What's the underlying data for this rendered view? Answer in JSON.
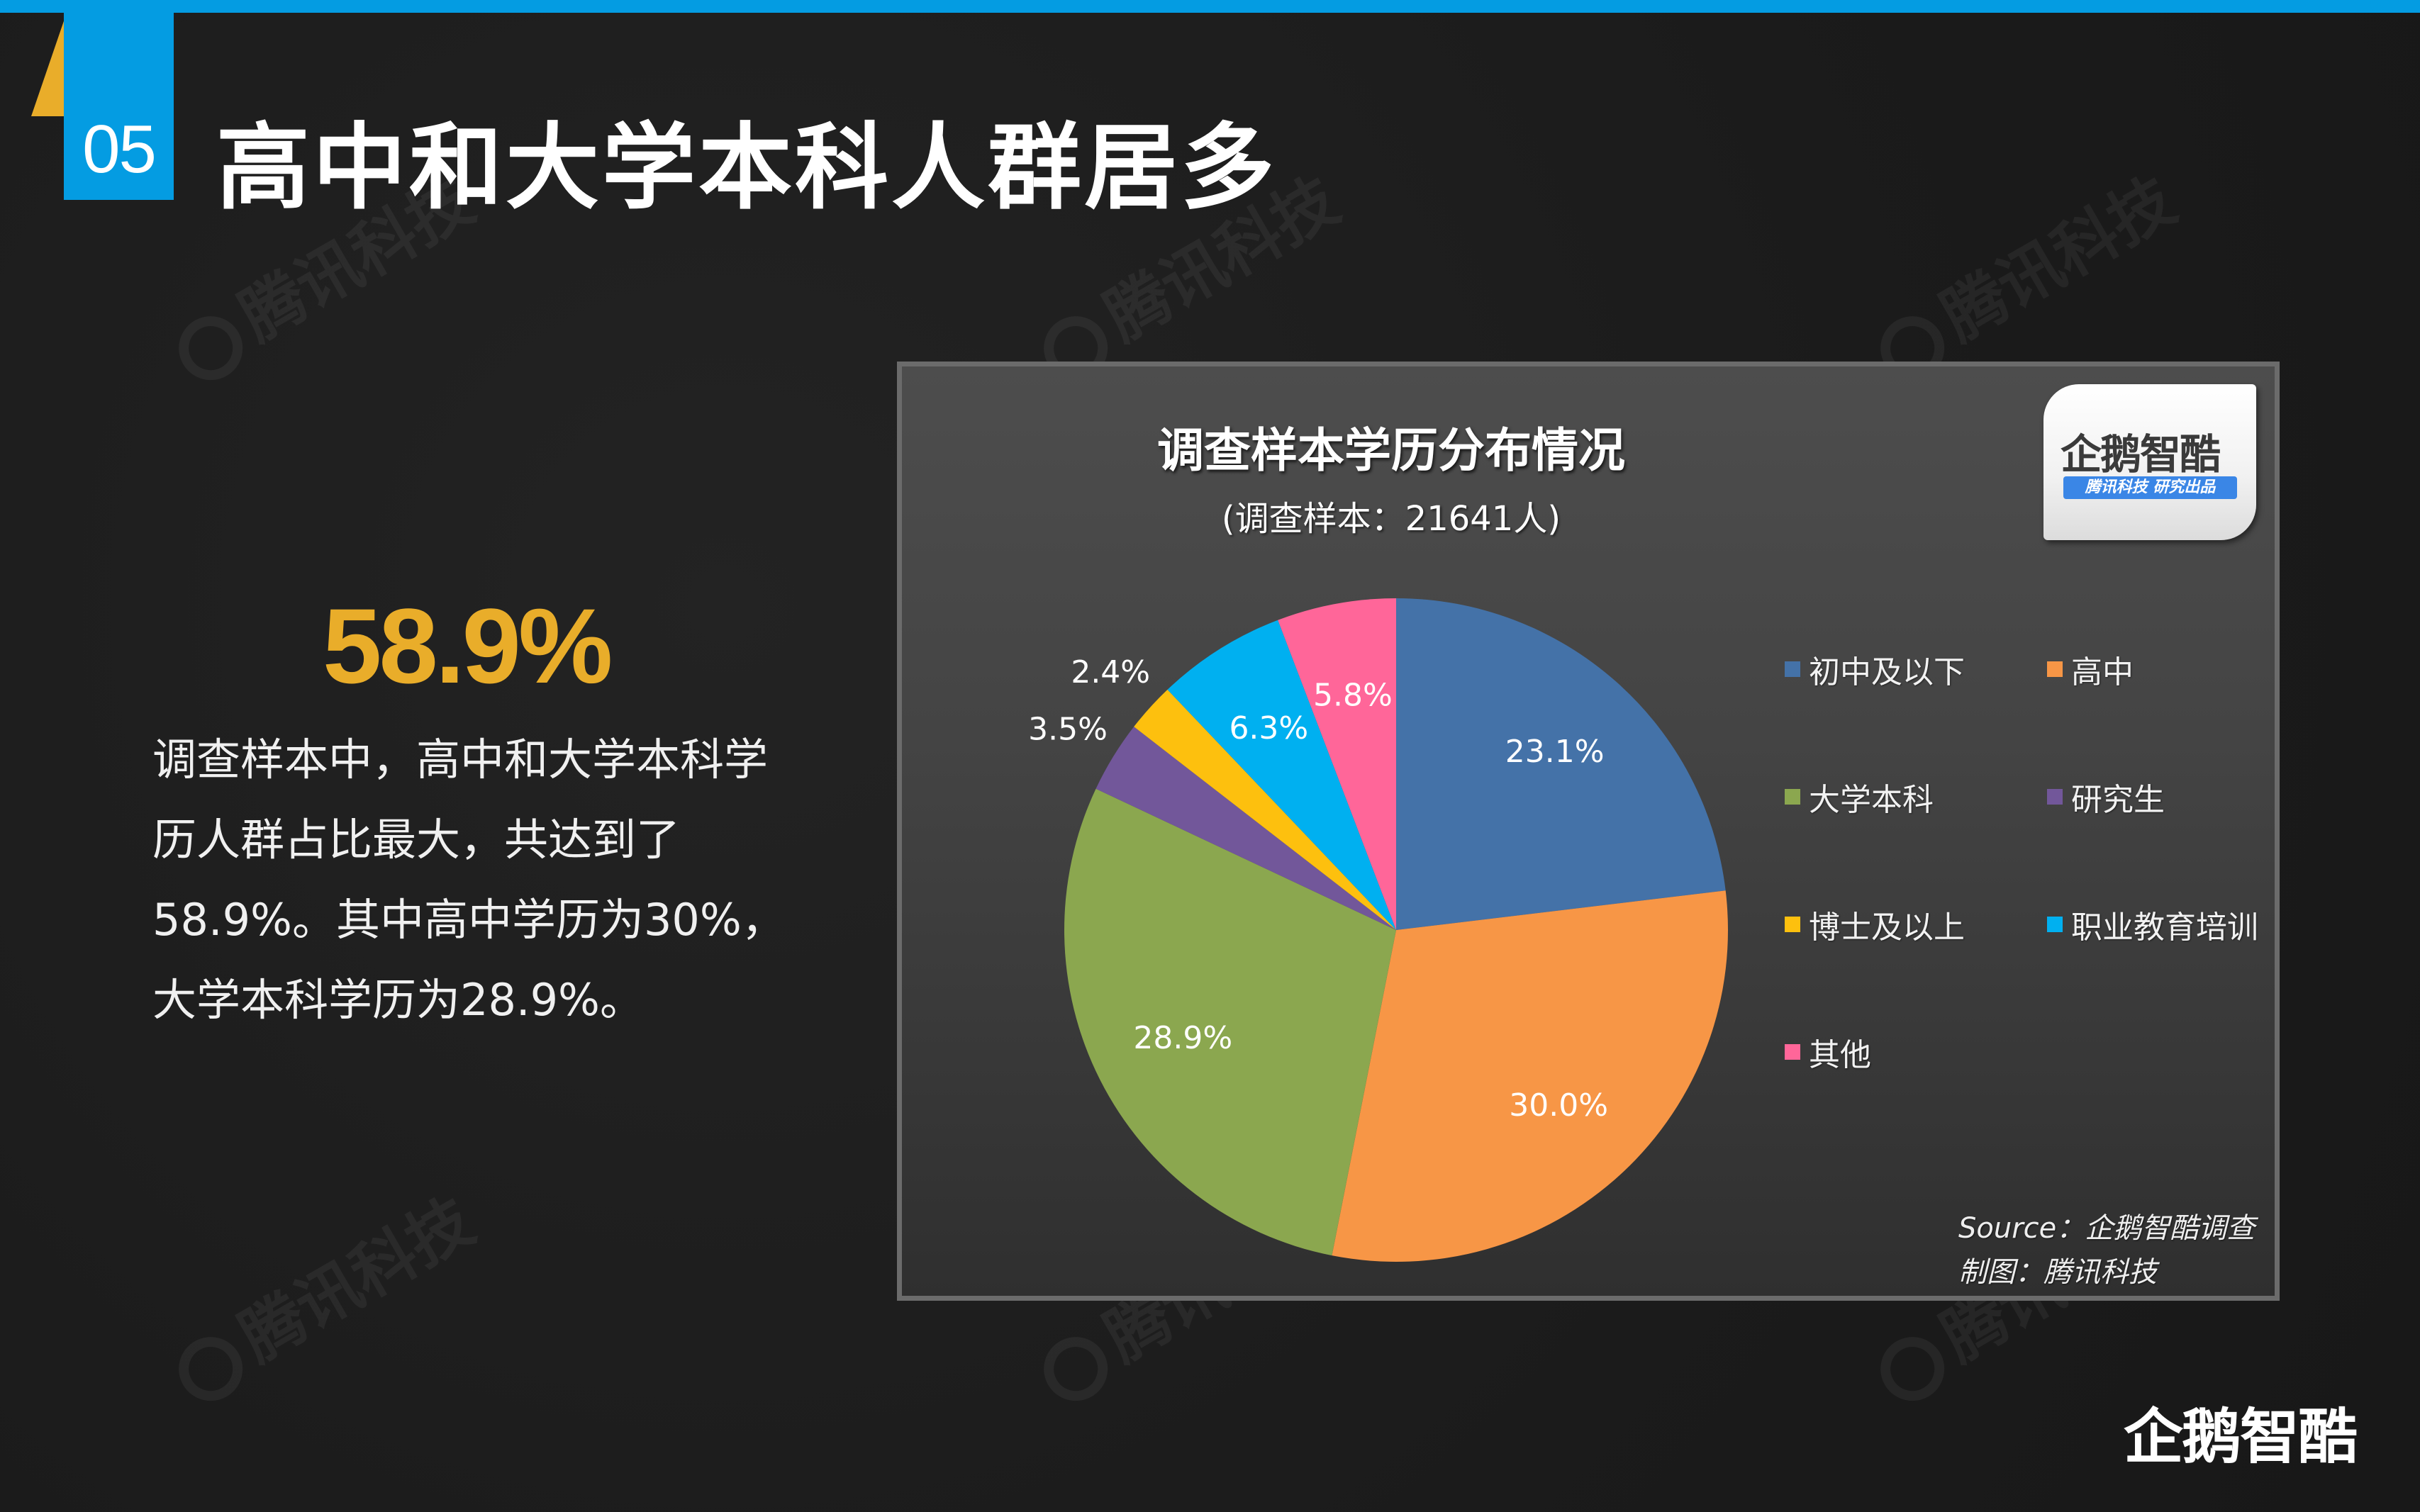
{
  "header": {
    "section_number": "05",
    "title": "高中和大学本科人群居多",
    "accent_color": "#049ce2",
    "secondary_accent": "#e9ad2a"
  },
  "summary": {
    "big_stat": "58.9%",
    "big_stat_color": "#e9ad2a",
    "lines": [
      "调查样本中，高中和大学本科学",
      "历人群占比最大，共达到了",
      "58.9%。其中高中学历为30%，",
      "大学本科学历为28.9%。"
    ]
  },
  "watermark": {
    "text": "腾讯科技"
  },
  "chart_logo": {
    "name": "企鹅智酷",
    "badge": "腾讯科技  研究出品"
  },
  "chart_data": {
    "type": "pie",
    "title": "调查样本学历分布情况",
    "subtitle": "(调查样本：21641人)",
    "categories": [
      "初中及以下",
      "高中",
      "大学本科",
      "研究生",
      "博士及以上",
      "职业教育培训",
      "其他"
    ],
    "values": [
      23.1,
      30.0,
      28.9,
      3.5,
      2.4,
      6.3,
      5.8
    ],
    "labels": [
      "23.1%",
      "30.0%",
      "28.9%",
      "3.5%",
      "2.4%",
      "6.3%",
      "5.8%"
    ],
    "colors": [
      "#4472a8",
      "#f79646",
      "#8ba74f",
      "#72579a",
      "#fdc00e",
      "#00b0f0",
      "#ff6699"
    ],
    "unit": "%",
    "start_angle": "12 o'clock, clockwise",
    "legend_position": "right",
    "source": "Source：企鹅智酷调查",
    "credit": "制图：腾讯科技"
  },
  "footer": {
    "brand": "企鹅智酷"
  }
}
